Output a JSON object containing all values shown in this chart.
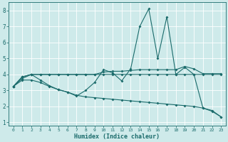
{
  "xlabel": "Humidex (Indice chaleur)",
  "xlim": [
    -0.5,
    23.5
  ],
  "ylim": [
    0.8,
    8.5
  ],
  "yticks": [
    1,
    2,
    3,
    4,
    5,
    6,
    7,
    8
  ],
  "xticks": [
    0,
    1,
    2,
    3,
    4,
    5,
    6,
    7,
    8,
    9,
    10,
    11,
    12,
    13,
    14,
    15,
    16,
    17,
    18,
    19,
    20,
    21,
    22,
    23
  ],
  "bg_color": "#ceeaea",
  "line_color": "#1a6b6b",
  "grid_color": "#ffffff",
  "series": [
    {
      "x": [
        0,
        1,
        2,
        3,
        4,
        5,
        6,
        7,
        8,
        9,
        10,
        11,
        12,
        13,
        14,
        15,
        16,
        17,
        18,
        19,
        20,
        21,
        22,
        23
      ],
      "y": [
        3.25,
        3.75,
        4.0,
        3.65,
        3.3,
        3.05,
        2.9,
        2.65,
        3.0,
        3.5,
        4.3,
        4.1,
        3.6,
        4.35,
        7.0,
        8.1,
        5.0,
        7.6,
        4.0,
        4.45,
        4.0,
        1.9,
        1.7,
        1.35
      ]
    },
    {
      "x": [
        0,
        1,
        2,
        3,
        4,
        5,
        6,
        7,
        8,
        9,
        10,
        11,
        12,
        13,
        14,
        15,
        16,
        17,
        18,
        19,
        20,
        21,
        22,
        23
      ],
      "y": [
        3.25,
        3.85,
        4.0,
        4.0,
        4.0,
        4.0,
        4.0,
        4.0,
        4.0,
        4.0,
        4.15,
        4.2,
        4.2,
        4.25,
        4.3,
        4.3,
        4.3,
        4.3,
        4.3,
        4.5,
        4.35,
        4.05,
        4.05,
        4.05
      ]
    },
    {
      "x": [
        0,
        1,
        2,
        3,
        4,
        5,
        6,
        7,
        8,
        9,
        10,
        11,
        12,
        13,
        14,
        15,
        16,
        17,
        18,
        19,
        20,
        21,
        22,
        23
      ],
      "y": [
        3.25,
        3.85,
        4.0,
        4.0,
        4.0,
        4.0,
        4.0,
        4.0,
        4.0,
        4.0,
        4.0,
        4.0,
        4.0,
        4.0,
        4.0,
        4.0,
        4.0,
        4.0,
        4.0,
        4.0,
        4.0,
        4.0,
        4.0,
        4.0
      ]
    },
    {
      "x": [
        0,
        1,
        2,
        3,
        4,
        5,
        6,
        7,
        8,
        9,
        10,
        11,
        12,
        13,
        14,
        15,
        16,
        17,
        18,
        19,
        20,
        21,
        22,
        23
      ],
      "y": [
        3.25,
        3.65,
        3.65,
        3.5,
        3.25,
        3.05,
        2.9,
        2.7,
        2.6,
        2.55,
        2.5,
        2.45,
        2.4,
        2.35,
        2.3,
        2.25,
        2.2,
        2.15,
        2.1,
        2.05,
        2.0,
        1.9,
        1.75,
        1.35
      ]
    }
  ]
}
